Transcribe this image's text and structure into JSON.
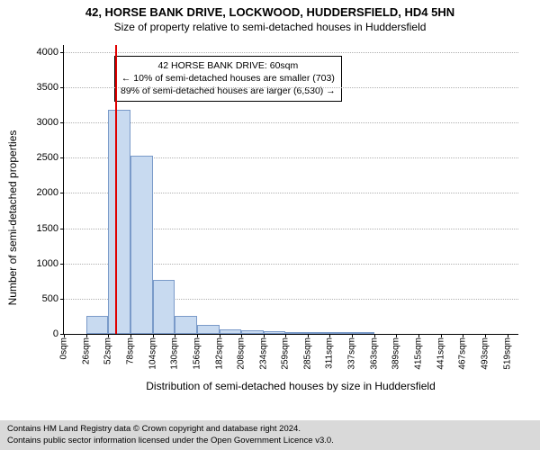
{
  "title_main": "42, HORSE BANK DRIVE, LOCKWOOD, HUDDERSFIELD, HD4 5HN",
  "title_sub": "Size of property relative to semi-detached houses in Huddersfield",
  "ylabel": "Number of semi-detached properties",
  "xlabel": "Distribution of semi-detached houses by size in Huddersfield",
  "chart": {
    "type": "histogram",
    "x_domain_max": 532,
    "y_domain_max": 4100,
    "y_ticks": [
      0,
      500,
      1000,
      1500,
      2000,
      2500,
      3000,
      3500,
      4000
    ],
    "x_ticks": [
      {
        "v": 0,
        "label": "0sqm"
      },
      {
        "v": 26,
        "label": "26sqm"
      },
      {
        "v": 52,
        "label": "52sqm"
      },
      {
        "v": 78,
        "label": "78sqm"
      },
      {
        "v": 104,
        "label": "104sqm"
      },
      {
        "v": 130,
        "label": "130sqm"
      },
      {
        "v": 156,
        "label": "156sqm"
      },
      {
        "v": 182,
        "label": "182sqm"
      },
      {
        "v": 208,
        "label": "208sqm"
      },
      {
        "v": 234,
        "label": "234sqm"
      },
      {
        "v": 259,
        "label": "259sqm"
      },
      {
        "v": 285,
        "label": "285sqm"
      },
      {
        "v": 311,
        "label": "311sqm"
      },
      {
        "v": 337,
        "label": "337sqm"
      },
      {
        "v": 363,
        "label": "363sqm"
      },
      {
        "v": 389,
        "label": "389sqm"
      },
      {
        "v": 415,
        "label": "415sqm"
      },
      {
        "v": 441,
        "label": "441sqm"
      },
      {
        "v": 467,
        "label": "467sqm"
      },
      {
        "v": 493,
        "label": "493sqm"
      },
      {
        "v": 519,
        "label": "519sqm"
      }
    ],
    "bars": [
      {
        "x0": 26,
        "x1": 52,
        "y": 250
      },
      {
        "x0": 52,
        "x1": 78,
        "y": 3180
      },
      {
        "x0": 78,
        "x1": 104,
        "y": 2530
      },
      {
        "x0": 104,
        "x1": 130,
        "y": 770
      },
      {
        "x0": 130,
        "x1": 156,
        "y": 250
      },
      {
        "x0": 156,
        "x1": 182,
        "y": 130
      },
      {
        "x0": 182,
        "x1": 208,
        "y": 70
      },
      {
        "x0": 208,
        "x1": 234,
        "y": 50
      },
      {
        "x0": 234,
        "x1": 259,
        "y": 35
      },
      {
        "x0": 259,
        "x1": 285,
        "y": 25
      },
      {
        "x0": 285,
        "x1": 311,
        "y": 20
      },
      {
        "x0": 311,
        "x1": 337,
        "y": 18
      },
      {
        "x0": 337,
        "x1": 363,
        "y": 18
      }
    ],
    "bar_fill": "#c8daf0",
    "bar_stroke": "#7a9ac9",
    "grid_color": "#b0b0b0",
    "marker_x": 60,
    "marker_color": "#e00000",
    "background_color": "#ffffff"
  },
  "annotation": {
    "line1": "42 HORSE BANK DRIVE: 60sqm",
    "line2": "← 10% of semi-detached houses are smaller (703)",
    "line3": "89% of semi-detached houses are larger (6,530) →"
  },
  "footer": {
    "line1": "Contains HM Land Registry data © Crown copyright and database right 2024.",
    "line2": "Contains public sector information licensed under the Open Government Licence v3.0."
  }
}
